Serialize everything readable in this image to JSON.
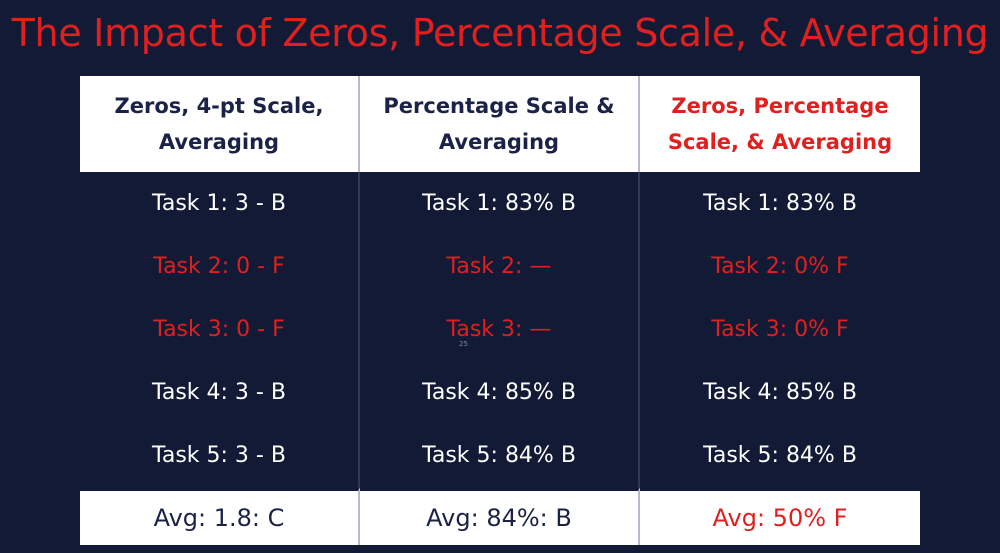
{
  "slide": {
    "title": "The Impact of Zeros, Percentage Scale, & Averaging",
    "page_marker": "25"
  },
  "table": {
    "columns": [
      {
        "header": [
          "Zeros, 4-pt Scale,",
          "Averaging"
        ],
        "rows": [
          "Task 1: 3 - B",
          "Task 2: 0 - F",
          "Task 3: 0 - F",
          "Task 4: 3 - B",
          "Task 5: 3 - B"
        ],
        "average": "Avg: 1.8: C"
      },
      {
        "header": [
          "Percentage Scale &",
          "Averaging"
        ],
        "rows": [
          "Task 1: 83% B",
          "Task 2: —",
          "Task 3: —",
          "Task 4: 85% B",
          "Task 5: 84% B"
        ],
        "average": "Avg: 84%: B"
      },
      {
        "header": [
          "Zeros, Percentage",
          "Scale, & Averaging"
        ],
        "rows": [
          "Task 1: 83% B",
          "Task 2: 0% F",
          "Task 3: 0% F",
          "Task 4: 85% B",
          "Task 5: 84% B"
        ],
        "average": "Avg: 50% F"
      }
    ]
  },
  "colors": {
    "background": "#121a36",
    "accent_red": "#e0201f",
    "header_text": "#1a2247",
    "body_text": "#ffffff"
  }
}
